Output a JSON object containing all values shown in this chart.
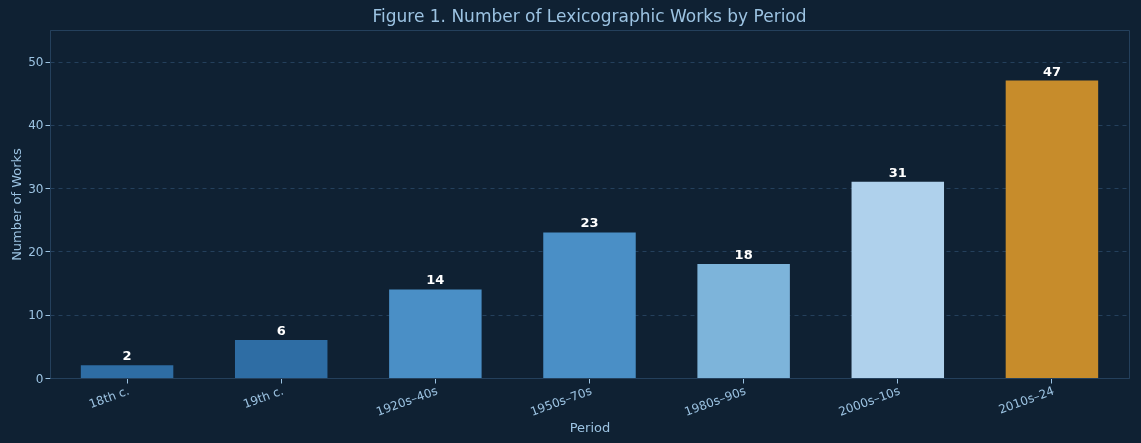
{
  "chart_data": {
    "type": "bar",
    "title": "Figure 1. Number of Lexicographic Works by Period",
    "xlabel": "Period",
    "ylabel": "Number of Works",
    "categories": [
      "18th c.",
      "19th c.",
      "1920s–40s",
      "1950s–70s",
      "1980s–90s",
      "2000s–10s",
      "2010s–24"
    ],
    "values": [
      2,
      6,
      14,
      23,
      18,
      31,
      47
    ],
    "colors": [
      "#2e6da4",
      "#2e6da4",
      "#4a8fc6",
      "#4a8fc6",
      "#7db4da",
      "#afd1ec",
      "#c78c2b"
    ],
    "ylim": [
      0,
      55
    ],
    "yticks": [
      0,
      10,
      20,
      30,
      40,
      50
    ],
    "grid": "y",
    "data_labels": true
  }
}
